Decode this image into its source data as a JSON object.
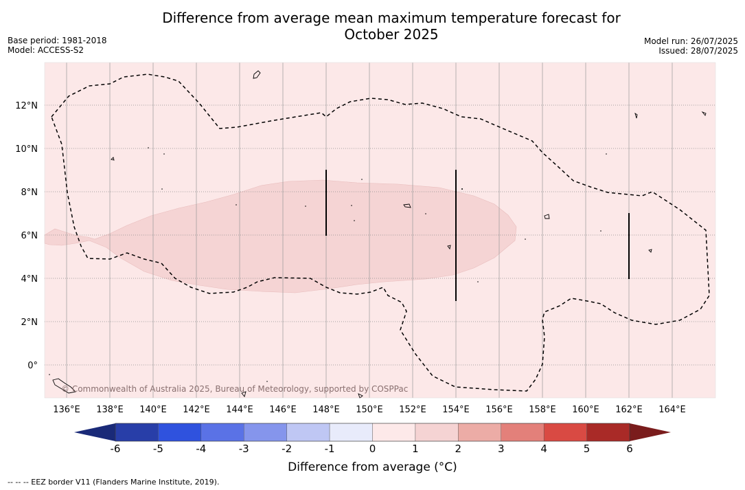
{
  "header": {
    "title_line1": "Difference from average mean maximum temperature forecast for",
    "title_line2": "October 2025",
    "base_period": "Base period: 1981-2018",
    "model": "Model: ACCESS-S2",
    "model_run": "Model run: 26/07/2025",
    "issued": "Issued: 28/07/2025"
  },
  "map": {
    "lon_range": [
      135,
      166
    ],
    "lat_range": [
      -1.5,
      14
    ],
    "lon_ticks": [
      "136°E",
      "138°E",
      "140°E",
      "142°E",
      "144°E",
      "146°E",
      "148°E",
      "150°E",
      "152°E",
      "154°E",
      "156°E",
      "158°E",
      "160°E",
      "162°E",
      "164°E"
    ],
    "lat_ticks": [
      "12°N",
      "10°N",
      "8°N",
      "6°N",
      "4°N",
      "2°N",
      "0°"
    ],
    "background_category": "0 to 1",
    "anomaly_region_category": "1 to 2",
    "copyright": "© Commonwealth of Australia 2025, Bureau of Meteorology, supported by COSPPac"
  },
  "colorbar": {
    "tick_labels": [
      "-6",
      "-5",
      "-4",
      "-3",
      "-2",
      "-1",
      "0",
      "1",
      "2",
      "3",
      "4",
      "5",
      "6"
    ],
    "colors": [
      "#283ea8",
      "#2f52de",
      "#5a72e6",
      "#8595ec",
      "#bfc7f4",
      "#e8ebfb",
      "#fde9e9",
      "#f5d3d3",
      "#ecaca6",
      "#e3807a",
      "#d94a43",
      "#a92a27"
    ],
    "extend_low_color": "#1a2a78",
    "extend_high_color": "#7a1c1c",
    "label": "Difference from average (°C)"
  },
  "footer": {
    "eez_legend": "--  --  -- EEZ border V11 (Flanders Marine Institute, 2019)."
  }
}
